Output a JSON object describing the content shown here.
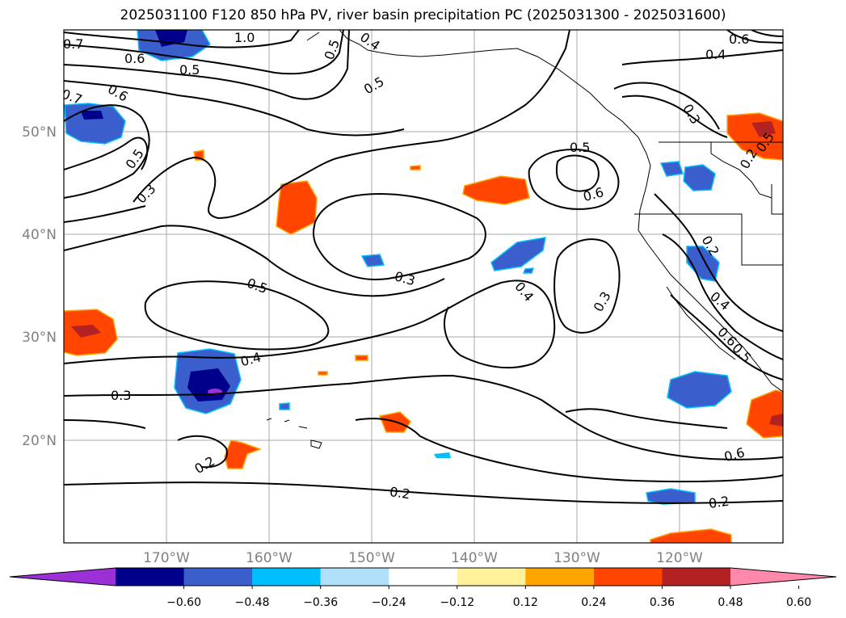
{
  "title": "2025031100 F120 850 hPa PV, river basin precipitation PC (2025031300 - 2025031600)",
  "lat_labels": [
    "50°N",
    "40°N",
    "30°N",
    "20°N"
  ],
  "lon_labels": [
    "170°W",
    "160°W",
    "150°W",
    "140°W",
    "130°W",
    "120°W"
  ],
  "contour_labels": [
    "0.7",
    "0.6",
    "1.0",
    "0.5",
    "0.4",
    "0.5",
    "0.5",
    "0.4",
    "0.6",
    "0.7",
    "0.6",
    "0.5",
    "0.3",
    "0.5",
    "0.6",
    "0.3",
    "0.5",
    "0.3",
    "0.4",
    "0.3",
    "0.2",
    "0.4",
    "0.3",
    "0.2",
    "0.6",
    "0.2",
    "0.2",
    "0.4",
    "0.5",
    "0.6",
    "0.2",
    "0.5"
  ],
  "colorbar": {
    "colors": [
      "#9b30d6",
      "#00008b",
      "#3a5fcd",
      "#00bfff",
      "#b0e0fa",
      "#ffffff",
      "#fff09a",
      "#ffa500",
      "#ff4500",
      "#b22222",
      "#ff89aa"
    ],
    "tick_labels": [
      "−0.60",
      "−0.48",
      "−0.36",
      "−0.24",
      "−0.12",
      "0.12",
      "0.24",
      "0.36",
      "0.48",
      "0.60"
    ]
  }
}
